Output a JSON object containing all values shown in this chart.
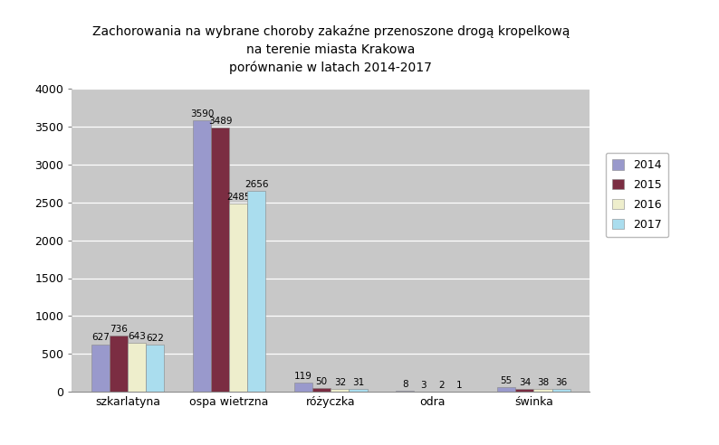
{
  "title": "Zachorowania na wybrane choroby zakaźne przenoszone drogą kropelkową\nna terenie miasta Krakowa\nporównanie w latach 2014-2017",
  "categories": [
    "szkarlatyna",
    "ospa wietrzna",
    "różyczka",
    "odra",
    "świnka"
  ],
  "years": [
    "2014",
    "2015",
    "2016",
    "2017"
  ],
  "values": {
    "2014": [
      627,
      3590,
      119,
      8,
      55
    ],
    "2015": [
      736,
      3489,
      50,
      3,
      34
    ],
    "2016": [
      643,
      2485,
      32,
      2,
      38
    ],
    "2017": [
      622,
      2656,
      31,
      1,
      36
    ]
  },
  "colors": {
    "2014": "#9999CC",
    "2015": "#7B2D42",
    "2016": "#EEEECC",
    "2017": "#AADDEE"
  },
  "ylim": [
    0,
    4000
  ],
  "yticks": [
    0,
    500,
    1000,
    1500,
    2000,
    2500,
    3000,
    3500,
    4000
  ],
  "fig_bg_color": "#FFFFFF",
  "plot_bg_color": "#C8C8C8",
  "legend_bg_color": "#FFFFFF",
  "bar_width": 0.18,
  "title_fontsize": 10,
  "tick_fontsize": 9,
  "label_fontsize": 9,
  "value_fontsize": 7.5
}
